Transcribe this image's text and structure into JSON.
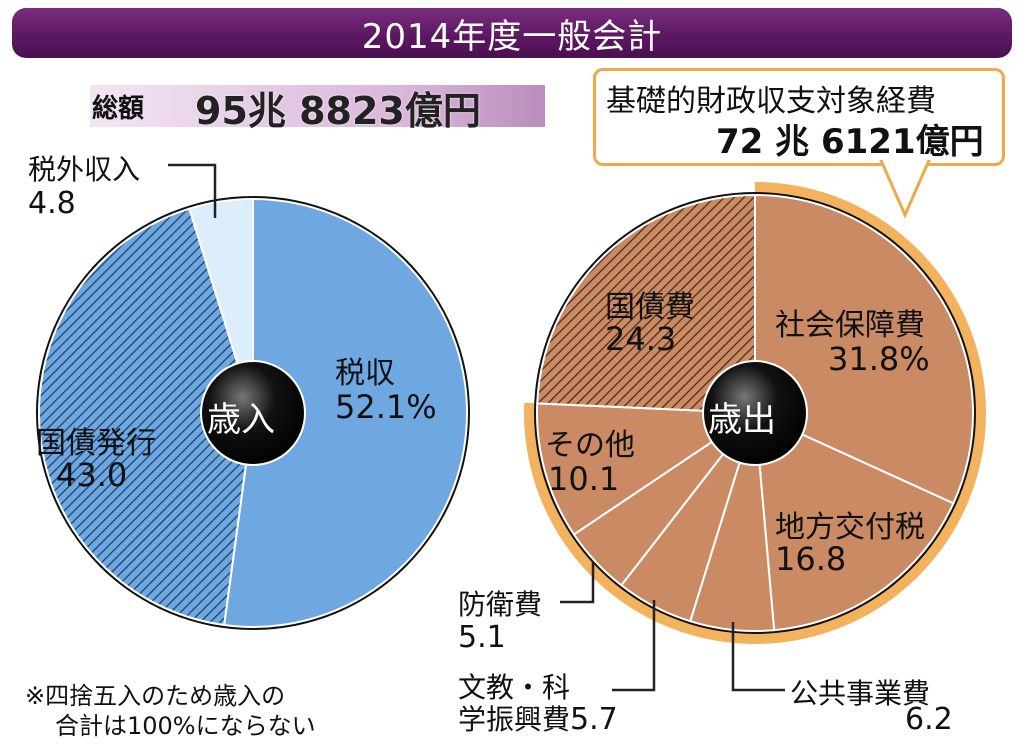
{
  "title": "2014年度一般会計",
  "total": {
    "label": "総額",
    "value": "95兆 8823億円"
  },
  "callout": {
    "label": "基礎的財政収支対象経費",
    "value": "72 兆 6121億円"
  },
  "note": [
    "※四捨五入のため歳入の",
    "合計は100%にならない"
  ],
  "colors": {
    "revenue": "#6fa8e0",
    "revenue_light": "#dceefb",
    "expenditure": "#c98a64",
    "ring": "#f3b25d",
    "title_bar": "#5a1760"
  },
  "chart_data": [
    {
      "type": "pie",
      "center_label": "歳入",
      "start": "top",
      "direction": "clockwise",
      "slices": [
        {
          "label": "税収",
          "value": 52.1,
          "display": "52.1%",
          "fill": "solid"
        },
        {
          "label": "国債発行",
          "value": 43.0,
          "display": "43.0",
          "fill": "hatched"
        },
        {
          "label": "税外収入",
          "value": 4.8,
          "display": "4.8",
          "fill": "light"
        }
      ]
    },
    {
      "type": "pie",
      "center_label": "歳出",
      "start": "top",
      "direction": "clockwise",
      "slices": [
        {
          "label": "社会保障費",
          "value": 31.8,
          "display": "31.8%",
          "fill": "solid"
        },
        {
          "label": "地方交付税",
          "value": 16.8,
          "display": "16.8",
          "fill": "solid"
        },
        {
          "label": "公共事業費",
          "value": 6.2,
          "display": "6.2",
          "fill": "solid"
        },
        {
          "label": "文教・科学振興費",
          "value": 5.7,
          "display": "5.7",
          "fill": "solid"
        },
        {
          "label": "防衛費",
          "value": 5.1,
          "display": "5.1",
          "fill": "solid"
        },
        {
          "label": "その他",
          "value": 10.1,
          "display": "10.1",
          "fill": "solid"
        },
        {
          "label": "国債費",
          "value": 24.3,
          "display": "24.3",
          "fill": "hatched"
        }
      ],
      "highlight_ring": "基礎的財政収支対象経費"
    }
  ]
}
